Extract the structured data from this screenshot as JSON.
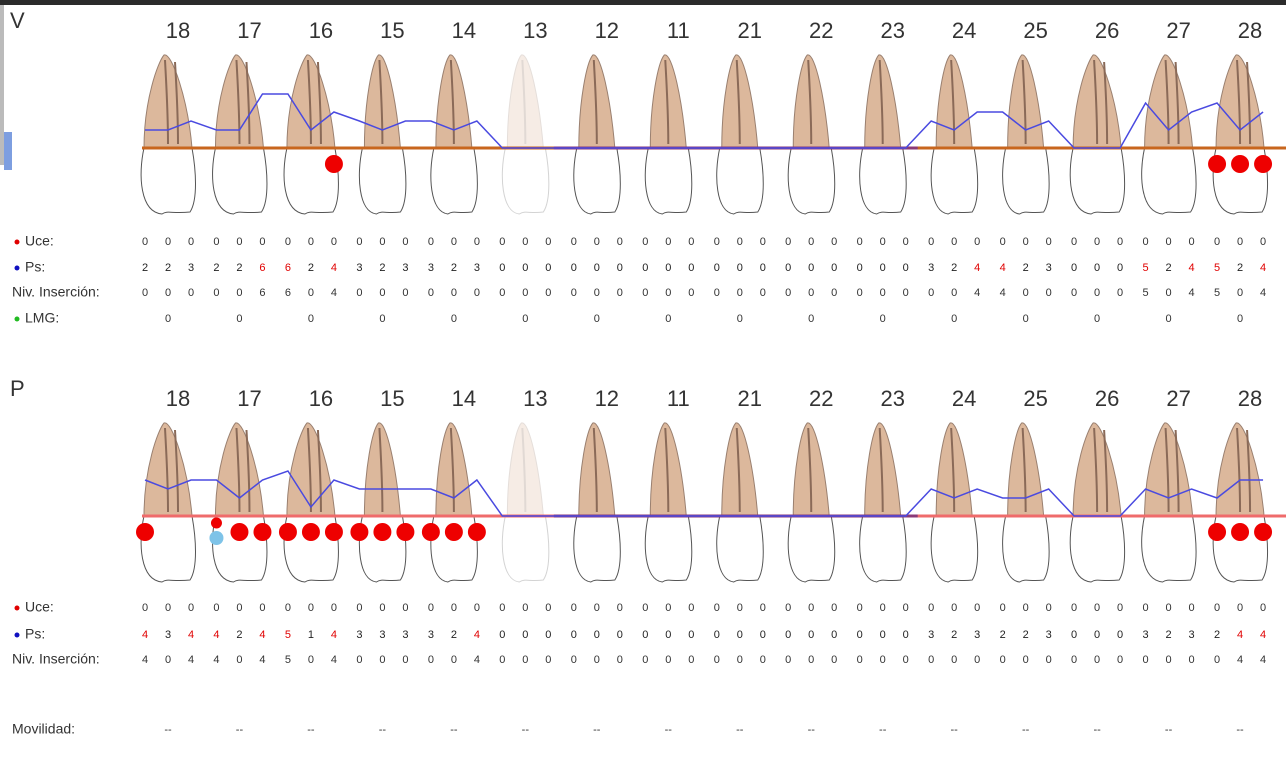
{
  "sections": [
    {
      "title": "V",
      "teeth": [
        18,
        17,
        16,
        15,
        14,
        13,
        12,
        11,
        21,
        22,
        23,
        24,
        25,
        26,
        27,
        28
      ],
      "missing": [
        13
      ],
      "rows": [
        {
          "label": "Uce:",
          "bullet": "#e00000",
          "values": [
            0,
            0,
            0,
            0,
            0,
            0,
            0,
            0,
            0,
            0,
            0,
            0,
            0,
            0,
            0,
            0,
            0,
            0,
            0,
            0,
            0,
            0,
            0,
            0,
            0,
            0,
            0,
            0,
            0,
            0,
            0,
            0,
            0,
            0,
            0,
            0,
            0,
            0,
            0,
            0,
            0,
            0,
            0,
            0,
            0,
            0,
            0,
            0
          ]
        },
        {
          "label": "Ps:",
          "bullet": "#1010c0",
          "values": [
            2,
            2,
            3,
            2,
            2,
            6,
            6,
            2,
            4,
            3,
            2,
            3,
            3,
            2,
            3,
            0,
            0,
            0,
            0,
            0,
            0,
            0,
            0,
            0,
            0,
            0,
            0,
            0,
            0,
            0,
            0,
            0,
            0,
            3,
            2,
            4,
            4,
            2,
            3,
            0,
            0,
            0,
            5,
            2,
            4,
            5,
            2,
            4
          ],
          "colors": [
            "#222",
            "#222",
            "#222",
            "#222",
            "#222",
            "#e00000",
            "#e00000",
            "#222",
            "#e00000",
            "#222",
            "#222",
            "#222",
            "#222",
            "#222",
            "#222",
            "#222",
            "#222",
            "#222",
            "#222",
            "#222",
            "#222",
            "#222",
            "#222",
            "#222",
            "#222",
            "#222",
            "#222",
            "#222",
            "#222",
            "#222",
            "#222",
            "#222",
            "#222",
            "#222",
            "#222",
            "#e00000",
            "#e00000",
            "#222",
            "#222",
            "#222",
            "#222",
            "#222",
            "#e00000",
            "#222",
            "#e00000",
            "#e00000",
            "#222",
            "#e00000"
          ]
        },
        {
          "label": "Niv. Inserción:",
          "values": [
            0,
            0,
            0,
            0,
            0,
            6,
            6,
            0,
            4,
            0,
            0,
            0,
            0,
            0,
            0,
            0,
            0,
            0,
            0,
            0,
            0,
            0,
            0,
            0,
            0,
            0,
            0,
            0,
            0,
            0,
            0,
            0,
            0,
            0,
            0,
            4,
            4,
            0,
            0,
            0,
            0,
            0,
            5,
            0,
            4,
            5,
            0,
            4
          ]
        },
        {
          "label": "LMG:",
          "bullet": "#22bb22",
          "values": [
            0,
            0,
            0,
            0,
            0,
            0,
            0,
            0,
            0,
            0,
            0,
            0,
            0,
            0,
            0,
            0
          ]
        }
      ],
      "bleeding": [
        0,
        0,
        0,
        0,
        0,
        0,
        0,
        0,
        1,
        0,
        0,
        0,
        0,
        0,
        0,
        0,
        0,
        0,
        0,
        0,
        0,
        0,
        0,
        0,
        0,
        0,
        0,
        0,
        0,
        0,
        0,
        0,
        0,
        0,
        0,
        0,
        0,
        0,
        0,
        0,
        0,
        0,
        0,
        0,
        0,
        1,
        1,
        1
      ],
      "plaque": [
        0,
        0,
        0,
        0,
        0,
        0,
        0,
        0,
        0,
        0,
        0,
        0,
        0,
        0,
        0,
        0,
        0,
        0,
        0,
        0,
        0,
        0,
        0,
        0,
        0,
        0,
        0,
        0,
        0,
        0,
        0,
        0,
        0,
        0,
        0,
        0,
        0,
        0,
        0,
        0,
        0,
        0,
        0,
        0,
        0,
        0,
        0,
        0
      ]
    },
    {
      "title": "P",
      "teeth": [
        18,
        17,
        16,
        15,
        14,
        13,
        12,
        11,
        21,
        22,
        23,
        24,
        25,
        26,
        27,
        28
      ],
      "missing": [
        13
      ],
      "rows": [
        {
          "label": "Uce:",
          "bullet": "#e00000",
          "values": [
            0,
            0,
            0,
            0,
            0,
            0,
            0,
            0,
            0,
            0,
            0,
            0,
            0,
            0,
            0,
            0,
            0,
            0,
            0,
            0,
            0,
            0,
            0,
            0,
            0,
            0,
            0,
            0,
            0,
            0,
            0,
            0,
            0,
            0,
            0,
            0,
            0,
            0,
            0,
            0,
            0,
            0,
            0,
            0,
            0,
            0,
            0,
            0
          ]
        },
        {
          "label": "Ps:",
          "bullet": "#1010c0",
          "values": [
            4,
            3,
            4,
            4,
            2,
            4,
            5,
            1,
            4,
            3,
            3,
            3,
            3,
            2,
            4,
            0,
            0,
            0,
            0,
            0,
            0,
            0,
            0,
            0,
            0,
            0,
            0,
            0,
            0,
            0,
            0,
            0,
            0,
            3,
            2,
            3,
            2,
            2,
            3,
            0,
            0,
            0,
            3,
            2,
            3,
            2,
            4,
            4
          ],
          "colors": [
            "#e00000",
            "#222",
            "#e00000",
            "#e00000",
            "#222",
            "#e00000",
            "#e00000",
            "#222",
            "#e00000",
            "#222",
            "#222",
            "#222",
            "#222",
            "#222",
            "#e00000",
            "#222",
            "#222",
            "#222",
            "#222",
            "#222",
            "#222",
            "#222",
            "#222",
            "#222",
            "#222",
            "#222",
            "#222",
            "#222",
            "#222",
            "#222",
            "#222",
            "#222",
            "#222",
            "#222",
            "#222",
            "#222",
            "#222",
            "#222",
            "#222",
            "#222",
            "#222",
            "#222",
            "#222",
            "#222",
            "#222",
            "#222",
            "#e00000",
            "#e00000"
          ]
        },
        {
          "label": "Niv. Inserción:",
          "values": [
            4,
            0,
            4,
            4,
            0,
            4,
            5,
            0,
            4,
            0,
            0,
            0,
            0,
            0,
            4,
            0,
            0,
            0,
            0,
            0,
            0,
            0,
            0,
            0,
            0,
            0,
            0,
            0,
            0,
            0,
            0,
            0,
            0,
            0,
            0,
            0,
            0,
            0,
            0,
            0,
            0,
            0,
            0,
            0,
            0,
            0,
            4,
            4
          ]
        },
        {
          "label": "Movilidad:",
          "values": [
            "--",
            "--",
            "--",
            "--",
            "--",
            "--",
            "--",
            "--",
            "--",
            "--",
            "--",
            "--",
            "--",
            "--",
            "--",
            "--"
          ]
        }
      ],
      "bleeding": [
        1,
        0,
        0,
        1,
        1,
        1,
        1,
        1,
        1,
        1,
        1,
        1,
        1,
        1,
        1,
        0,
        0,
        0,
        0,
        0,
        0,
        0,
        0,
        0,
        0,
        0,
        0,
        0,
        0,
        0,
        0,
        0,
        0,
        0,
        0,
        0,
        0,
        0,
        0,
        0,
        0,
        0,
        0,
        0,
        0,
        1,
        1,
        1
      ],
      "plaque": [
        0,
        0,
        0,
        1,
        0,
        0,
        0,
        0,
        0,
        0,
        0,
        0,
        0,
        0,
        0,
        0,
        0,
        0,
        0,
        0,
        0,
        0,
        0,
        0,
        0,
        0,
        0,
        0,
        0,
        0,
        0,
        0,
        0,
        0,
        0,
        0,
        0,
        0,
        0,
        0,
        0,
        0,
        0,
        0,
        0,
        0,
        0,
        0
      ]
    }
  ]
}
